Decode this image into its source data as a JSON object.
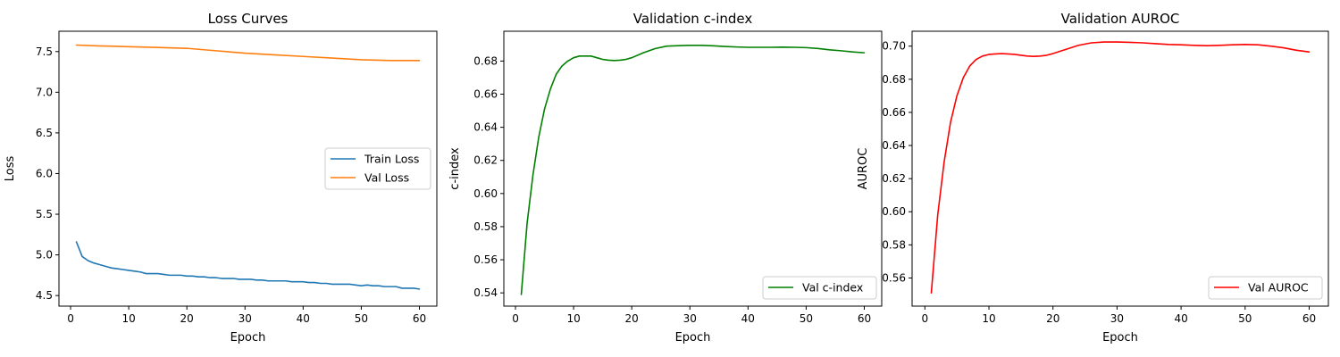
{
  "colors": {
    "train": "#1f77b4",
    "val": "#ff7f0e",
    "cindex": "#008000",
    "auroc": "#ff0000"
  },
  "chart_data": [
    {
      "type": "line",
      "title": "Loss Curves",
      "xlabel": "Epoch",
      "ylabel": "Loss",
      "xlim": [
        -2,
        63
      ],
      "ylim": [
        4.37,
        7.75
      ],
      "xticks": [
        0,
        10,
        20,
        30,
        40,
        50,
        60
      ],
      "yticks": [
        4.5,
        5.0,
        5.5,
        6.0,
        6.5,
        7.0,
        7.5
      ],
      "ytick_labels": [
        "4.5",
        "5.0",
        "5.5",
        "6.0",
        "6.5",
        "7.0",
        "7.5"
      ],
      "legend_position": "center-right",
      "series": [
        {
          "name": "Train Loss",
          "color": "#1f77b4",
          "x": [
            1,
            2,
            3,
            4,
            5,
            6,
            7,
            8,
            9,
            10,
            11,
            12,
            13,
            14,
            15,
            16,
            17,
            18,
            19,
            20,
            21,
            22,
            23,
            24,
            25,
            26,
            27,
            28,
            29,
            30,
            31,
            32,
            33,
            34,
            35,
            36,
            37,
            38,
            39,
            40,
            41,
            42,
            43,
            44,
            45,
            46,
            47,
            48,
            49,
            50,
            51,
            52,
            53,
            54,
            55,
            56,
            57,
            58,
            59,
            60
          ],
          "y": [
            5.16,
            4.98,
            4.93,
            4.9,
            4.88,
            4.86,
            4.84,
            4.83,
            4.82,
            4.81,
            4.8,
            4.79,
            4.77,
            4.77,
            4.77,
            4.76,
            4.75,
            4.75,
            4.75,
            4.74,
            4.74,
            4.73,
            4.73,
            4.72,
            4.72,
            4.71,
            4.71,
            4.71,
            4.7,
            4.7,
            4.7,
            4.69,
            4.69,
            4.68,
            4.68,
            4.68,
            4.68,
            4.67,
            4.67,
            4.67,
            4.66,
            4.66,
            4.65,
            4.65,
            4.64,
            4.64,
            4.64,
            4.64,
            4.63,
            4.62,
            4.63,
            4.62,
            4.62,
            4.61,
            4.61,
            4.61,
            4.59,
            4.59,
            4.59,
            4.58
          ]
        },
        {
          "name": "Val Loss",
          "color": "#ff7f0e",
          "x": [
            1,
            5,
            10,
            15,
            20,
            25,
            30,
            35,
            40,
            45,
            50,
            55,
            60
          ],
          "y": [
            7.58,
            7.57,
            7.56,
            7.55,
            7.54,
            7.51,
            7.48,
            7.46,
            7.44,
            7.42,
            7.4,
            7.39,
            7.39
          ]
        }
      ]
    },
    {
      "type": "line",
      "title": "Validation c-index",
      "xlabel": "Epoch",
      "ylabel": "c-index",
      "xlim": [
        -2,
        63
      ],
      "ylim": [
        0.532,
        0.698
      ],
      "xticks": [
        0,
        10,
        20,
        30,
        40,
        50,
        60
      ],
      "yticks": [
        0.54,
        0.56,
        0.58,
        0.6,
        0.62,
        0.64,
        0.66,
        0.68
      ],
      "ytick_labels": [
        "0.54",
        "0.56",
        "0.58",
        "0.60",
        "0.62",
        "0.64",
        "0.66",
        "0.68"
      ],
      "legend_position": "lower right",
      "series": [
        {
          "name": "Val c-index",
          "color": "#008000",
          "x": [
            1,
            2,
            3,
            4,
            5,
            6,
            7,
            8,
            9,
            10,
            11,
            12,
            13,
            14,
            15,
            16,
            17,
            18,
            19,
            20,
            22,
            24,
            26,
            28,
            30,
            32,
            34,
            36,
            38,
            40,
            42,
            44,
            46,
            48,
            50,
            52,
            54,
            56,
            58,
            60
          ],
          "y": [
            0.539,
            0.582,
            0.611,
            0.634,
            0.651,
            0.663,
            0.672,
            0.677,
            0.68,
            0.682,
            0.683,
            0.683,
            0.683,
            0.682,
            0.681,
            0.6805,
            0.6803,
            0.6805,
            0.681,
            0.682,
            0.685,
            0.6875,
            0.689,
            0.6893,
            0.6895,
            0.6895,
            0.6892,
            0.6888,
            0.6885,
            0.6883,
            0.6883,
            0.6883,
            0.6884,
            0.6883,
            0.6881,
            0.6876,
            0.6868,
            0.6862,
            0.6855,
            0.685
          ]
        }
      ]
    },
    {
      "type": "line",
      "title": "Validation AUROC",
      "xlabel": "Epoch",
      "ylabel": "AUROC",
      "xlim": [
        -2,
        63
      ],
      "ylim": [
        0.543,
        0.709
      ],
      "xticks": [
        0,
        10,
        20,
        30,
        40,
        50,
        60
      ],
      "yticks": [
        0.56,
        0.58,
        0.6,
        0.62,
        0.64,
        0.66,
        0.68,
        0.7
      ],
      "ytick_labels": [
        "0.56",
        "0.58",
        "0.60",
        "0.62",
        "0.64",
        "0.66",
        "0.68",
        "0.70"
      ],
      "legend_position": "lower right",
      "series": [
        {
          "name": "Val AUROC",
          "color": "#ff0000",
          "x": [
            1,
            2,
            3,
            4,
            5,
            6,
            7,
            8,
            9,
            10,
            11,
            12,
            13,
            14,
            15,
            16,
            17,
            18,
            19,
            20,
            22,
            24,
            26,
            28,
            30,
            32,
            34,
            36,
            38,
            40,
            42,
            44,
            46,
            48,
            50,
            52,
            54,
            56,
            58,
            60
          ],
          "y": [
            0.551,
            0.598,
            0.63,
            0.654,
            0.67,
            0.681,
            0.688,
            0.692,
            0.694,
            0.695,
            0.6953,
            0.6955,
            0.6953,
            0.695,
            0.6945,
            0.694,
            0.6938,
            0.694,
            0.6945,
            0.6955,
            0.698,
            0.7005,
            0.702,
            0.7025,
            0.7025,
            0.7023,
            0.702,
            0.7015,
            0.701,
            0.7008,
            0.7005,
            0.7003,
            0.7005,
            0.7008,
            0.701,
            0.7008,
            0.7,
            0.699,
            0.6975,
            0.6965
          ]
        }
      ]
    }
  ]
}
